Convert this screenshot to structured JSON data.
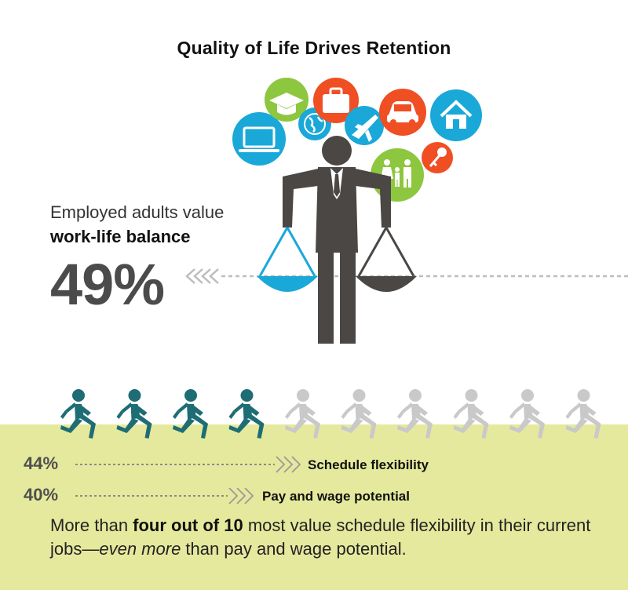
{
  "title": "Quality of Life Drives Retention",
  "intro": {
    "line1": "Employed adults value",
    "line2": "work-life balance"
  },
  "summary": {
    "part1": "More than ",
    "bold": "four out of 10",
    "part2": " most value schedule flexibility in their current jobs—",
    "italic": "even more",
    "part3": " than pay and wage potential."
  },
  "icons": [
    {
      "name": "laptop-icon",
      "color": "#1aa8d9"
    },
    {
      "name": "graduation-cap-icon",
      "color": "#8dc63f"
    },
    {
      "name": "globe-icon",
      "color": "#1aa8d9"
    },
    {
      "name": "briefcase-icon",
      "color": "#f04e23"
    },
    {
      "name": "airplane-icon",
      "color": "#1aa8d9"
    },
    {
      "name": "car-icon",
      "color": "#f04e23"
    },
    {
      "name": "house-icon",
      "color": "#1aa8d9"
    },
    {
      "name": "key-icon",
      "color": "#f04e23"
    },
    {
      "name": "family-icon",
      "color": "#8dc63f"
    }
  ],
  "colors": {
    "teal": "#1e6d74",
    "light_gray": "#c9c9c9",
    "green_band": "#e5e99d",
    "figure": "#4a4745",
    "scale_blue": "#1aa8d9"
  },
  "chart_data": {
    "type": "bar",
    "categories": [
      "work-life balance",
      "Schedule flexibility",
      "Pay and wage potential"
    ],
    "values": [
      49,
      44,
      40
    ],
    "value_labels": [
      "49%",
      "44%",
      "40%"
    ],
    "runners": {
      "total": 10,
      "filled": 4.5
    }
  }
}
